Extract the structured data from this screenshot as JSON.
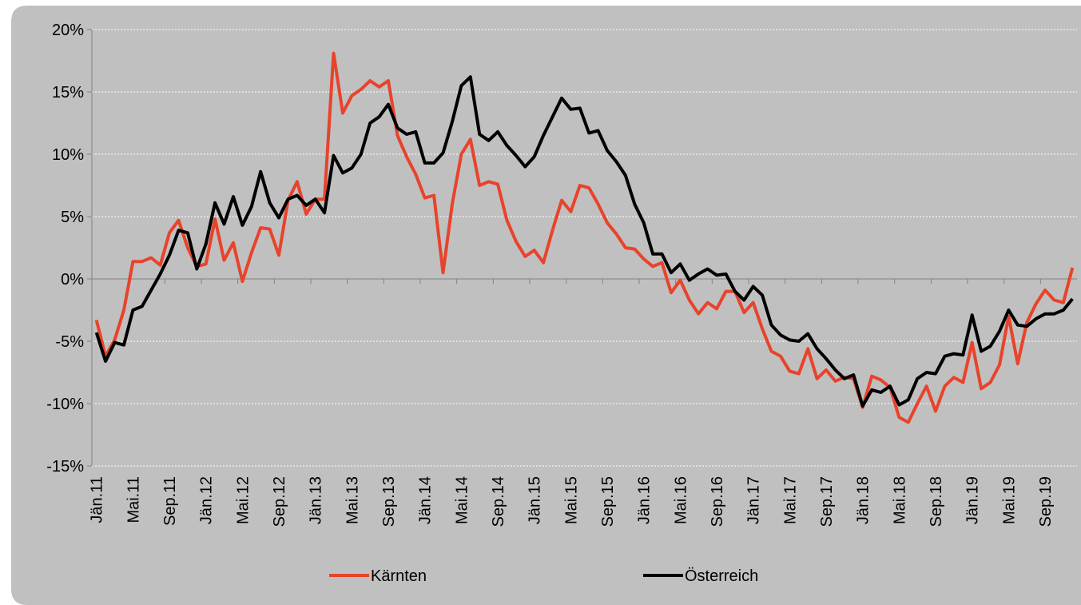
{
  "chart_data": {
    "type": "line",
    "categories": [
      "Jän.11",
      null,
      null,
      null,
      "Mai.11",
      null,
      null,
      null,
      "Sep.11",
      null,
      null,
      null,
      "Jän.12",
      null,
      null,
      null,
      "Mai.12",
      null,
      null,
      null,
      "Sep.12",
      null,
      null,
      null,
      "Jän.13",
      null,
      null,
      null,
      "Mai.13",
      null,
      null,
      null,
      "Sep.13",
      null,
      null,
      null,
      "Jän.14",
      null,
      null,
      null,
      "Mai.14",
      null,
      null,
      null,
      "Sep.14",
      null,
      null,
      null,
      "Jän.15",
      null,
      null,
      null,
      "Mai.15",
      null,
      null,
      null,
      "Sep.15",
      null,
      null,
      null,
      "Jän.16",
      null,
      null,
      null,
      "Mai.16",
      null,
      null,
      null,
      "Sep.16",
      null,
      null,
      null,
      "Jän.17",
      null,
      null,
      null,
      "Mai.17",
      null,
      null,
      null,
      "Sep.17",
      null,
      null,
      null,
      "Jän.18",
      null,
      null,
      null,
      "Mai.18",
      null,
      null,
      null,
      "Sep.18",
      null,
      null,
      null,
      "Jän.19",
      null,
      null,
      null,
      "Mai.19",
      null,
      null,
      null,
      "Sep.19",
      null,
      null,
      null
    ],
    "series": [
      {
        "name": "Kärnten",
        "color": "#e8432b",
        "values": [
          -3.3,
          -6.2,
          -4.9,
          -2.5,
          1.4,
          1.4,
          1.7,
          1.1,
          3.7,
          4.7,
          2.5,
          1.0,
          1.2,
          4.8,
          1.5,
          2.9,
          -0.2,
          2.1,
          4.1,
          4.0,
          1.9,
          6.3,
          7.8,
          5.2,
          6.4,
          6.4,
          18.1,
          13.3,
          14.7,
          15.2,
          15.9,
          15.4,
          15.9,
          11.5,
          9.8,
          8.4,
          6.5,
          6.7,
          0.5,
          6.0,
          10.0,
          11.2,
          7.5,
          7.8,
          7.6,
          4.7,
          3.0,
          1.8,
          2.3,
          1.3,
          3.9,
          6.3,
          5.4,
          7.5,
          7.3,
          6.0,
          4.5,
          3.6,
          2.5,
          2.4,
          1.6,
          1.0,
          1.3,
          -1.1,
          -0.1,
          -1.7,
          -2.8,
          -1.9,
          -2.4,
          -1.0,
          -1.0,
          -2.7,
          -1.9,
          -4.0,
          -5.8,
          -6.2,
          -7.4,
          -7.6,
          -5.6,
          -8.0,
          -7.3,
          -8.2,
          -7.9,
          -8.0,
          -10.3,
          -7.8,
          -8.1,
          -8.7,
          -11.1,
          -11.5,
          -10.0,
          -8.6,
          -10.6,
          -8.6,
          -7.9,
          -8.3,
          -5.1,
          -8.8,
          -8.3,
          -6.9,
          -3.0,
          -6.8,
          -3.5,
          -2.0,
          -0.9,
          -1.7,
          -1.9,
          0.9
        ]
      },
      {
        "name": "Österreich",
        "color": "#000000",
        "values": [
          -4.3,
          -6.6,
          -5.1,
          -5.3,
          -2.5,
          -2.2,
          -0.9,
          0.4,
          1.9,
          3.9,
          3.7,
          0.8,
          2.8,
          6.1,
          4.4,
          6.6,
          4.3,
          5.8,
          8.6,
          6.1,
          4.9,
          6.4,
          6.7,
          5.9,
          6.4,
          5.3,
          9.9,
          8.5,
          8.9,
          10.0,
          12.5,
          13.0,
          14.0,
          12.1,
          11.6,
          11.8,
          9.3,
          9.3,
          10.1,
          12.6,
          15.5,
          16.2,
          11.6,
          11.1,
          11.8,
          10.7,
          9.9,
          9.0,
          9.8,
          11.5,
          13.0,
          14.5,
          13.6,
          13.7,
          11.7,
          11.9,
          10.3,
          9.4,
          8.3,
          6.0,
          4.5,
          2.0,
          2.0,
          0.5,
          1.2,
          -0.1,
          0.4,
          0.8,
          0.3,
          0.4,
          -1.0,
          -1.7,
          -0.6,
          -1.3,
          -3.7,
          -4.5,
          -4.9,
          -5.0,
          -4.4,
          -5.6,
          -6.4,
          -7.3,
          -8.0,
          -7.7,
          -10.2,
          -8.9,
          -9.1,
          -8.6,
          -10.1,
          -9.7,
          -8.0,
          -7.5,
          -7.6,
          -6.2,
          -6.0,
          -6.1,
          -2.9,
          -5.8,
          -5.4,
          -4.2,
          -2.5,
          -3.7,
          -3.8,
          -3.2,
          -2.8,
          -2.8,
          -2.5,
          -1.6
        ]
      }
    ],
    "ylim": [
      -15,
      20
    ],
    "yticks": [
      {
        "value": -15,
        "label": "-15%"
      },
      {
        "value": -10,
        "label": "-10%"
      },
      {
        "value": -5,
        "label": "-5%"
      },
      {
        "value": 0,
        "label": "0%"
      },
      {
        "value": 5,
        "label": "5%"
      },
      {
        "value": 10,
        "label": "10%"
      },
      {
        "value": 15,
        "label": "15%"
      },
      {
        "value": 20,
        "label": "20%"
      }
    ],
    "grid": true,
    "legend": "bottom"
  }
}
